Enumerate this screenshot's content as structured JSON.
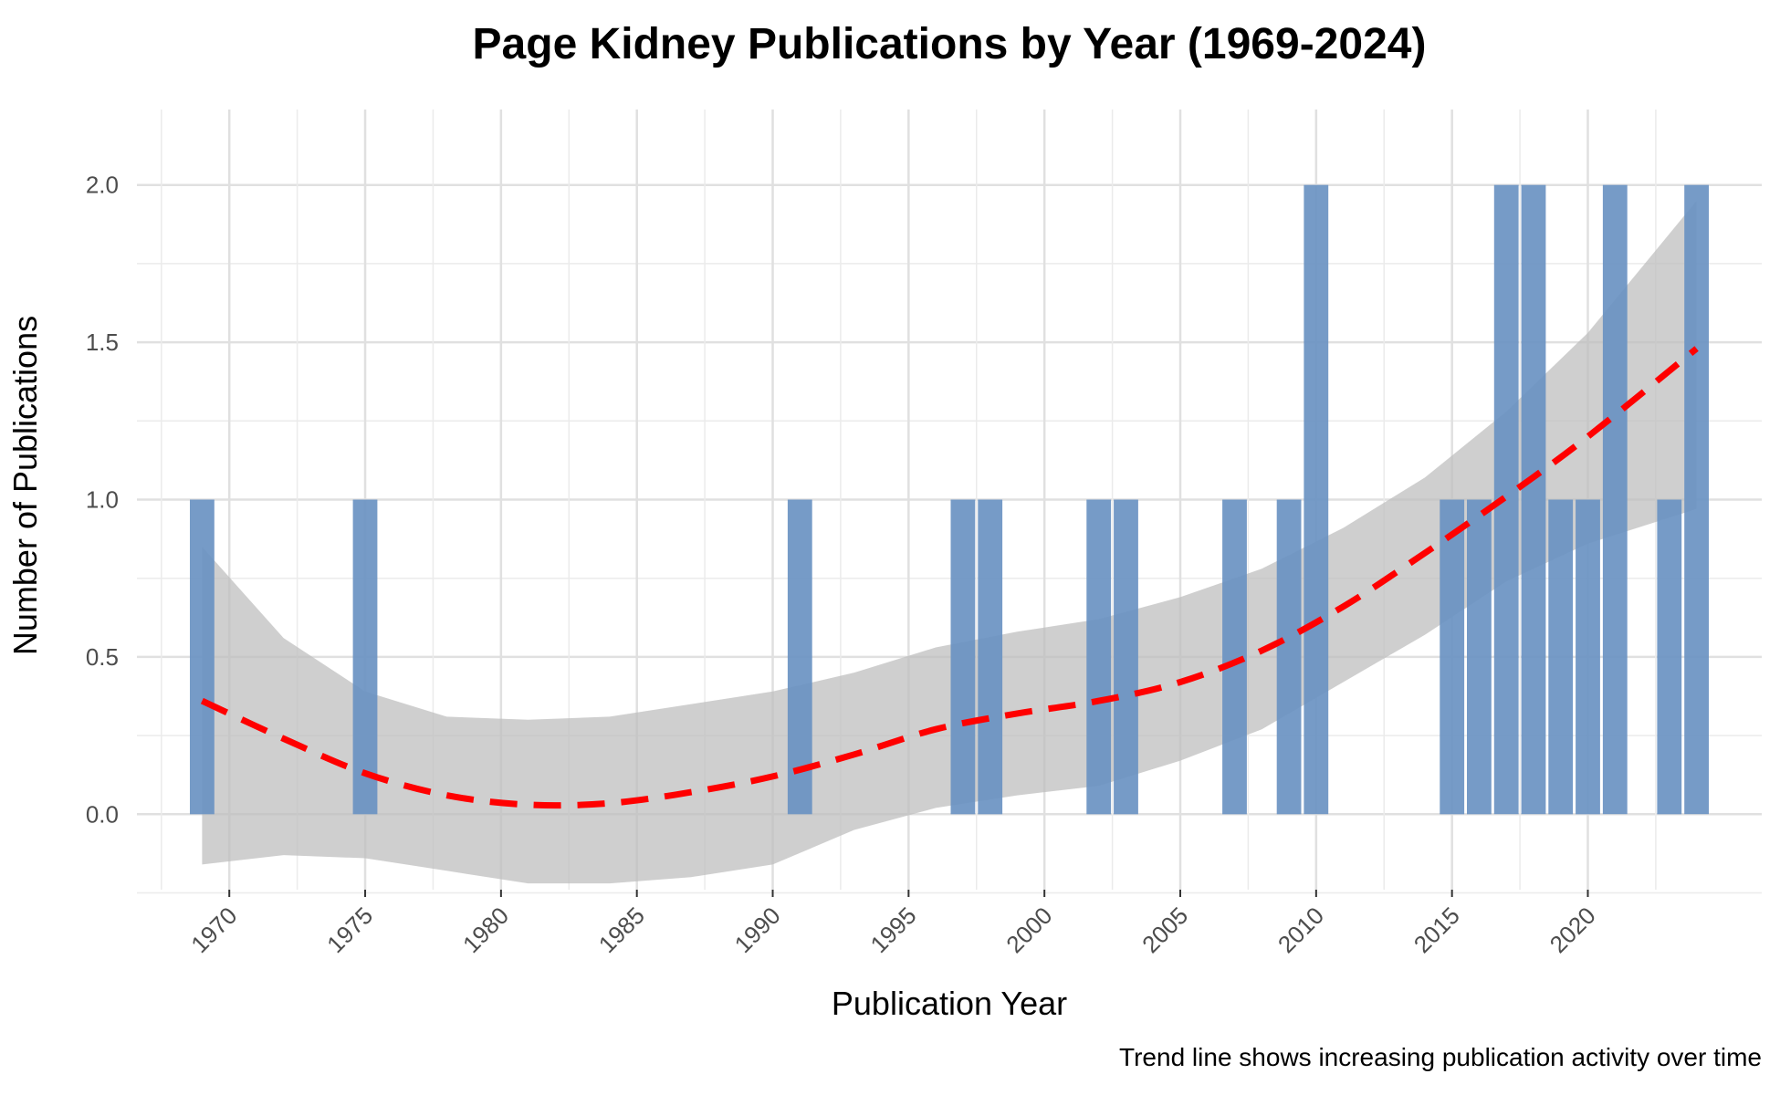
{
  "chart_data": {
    "type": "bar",
    "title": "Page Kidney Publications by Year (1969-2024)",
    "xlabel": "Publication Year",
    "ylabel": "Number of Publications",
    "caption": "Trend line shows increasing publication activity over time",
    "x_ticks": [
      1970,
      1975,
      1980,
      1985,
      1990,
      1995,
      2000,
      2005,
      2010,
      2015,
      2020
    ],
    "y_ticks": [
      0.0,
      0.5,
      1.0,
      1.5,
      2.0
    ],
    "y_tick_labels": [
      "0.0",
      "0.5",
      "1.0",
      "1.5",
      "2.0"
    ],
    "xlim": [
      1966.6,
      2026.4
    ],
    "ylim": [
      -0.24,
      2.24
    ],
    "grid": true,
    "bar_color": "#6a93c2",
    "trend_color": "#ff0000",
    "band_color": "#bdbdbd",
    "x": [
      1969,
      1975,
      1991,
      1997,
      1998,
      2002,
      2003,
      2007,
      2009,
      2010,
      2015,
      2016,
      2017,
      2018,
      2019,
      2020,
      2021,
      2023,
      2024
    ],
    "values": [
      1,
      1,
      1,
      1,
      1,
      1,
      1,
      1,
      1,
      2,
      1,
      1,
      2,
      2,
      1,
      1,
      2,
      1,
      2
    ],
    "trend": {
      "x": [
        1969,
        1972,
        1975,
        1978,
        1981,
        1984,
        1987,
        1990,
        1993,
        1996,
        1999,
        2002,
        2005,
        2008,
        2011,
        2014,
        2017,
        2020,
        2024
      ],
      "y": [
        0.36,
        0.24,
        0.13,
        0.06,
        0.03,
        0.035,
        0.07,
        0.12,
        0.19,
        0.27,
        0.32,
        0.36,
        0.42,
        0.52,
        0.66,
        0.83,
        1.01,
        1.2,
        1.48
      ],
      "lower": [
        -0.16,
        -0.13,
        -0.14,
        -0.18,
        -0.22,
        -0.22,
        -0.2,
        -0.16,
        -0.05,
        0.02,
        0.06,
        0.09,
        0.17,
        0.27,
        0.42,
        0.57,
        0.74,
        0.86,
        0.97
      ],
      "upper": [
        0.85,
        0.56,
        0.39,
        0.31,
        0.3,
        0.31,
        0.35,
        0.39,
        0.45,
        0.53,
        0.58,
        0.62,
        0.69,
        0.78,
        0.91,
        1.07,
        1.28,
        1.53,
        1.95
      ]
    }
  }
}
